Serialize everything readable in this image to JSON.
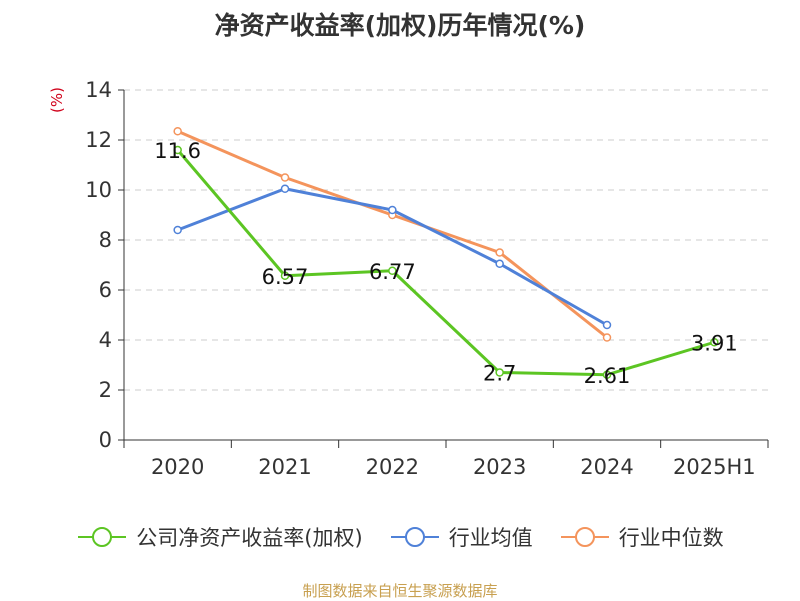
{
  "chart_data": {
    "type": "line",
    "title": "净资产收益率(加权)历年情况(%)",
    "ylabel": "(%)",
    "categories": [
      "2020",
      "2021",
      "2022",
      "2023",
      "2024",
      "2025H1"
    ],
    "ylim": [
      0,
      14
    ],
    "yticks": [
      0,
      2,
      4,
      6,
      8,
      10,
      12,
      14
    ],
    "grid": true,
    "legend_position": "bottom",
    "series": [
      {
        "name": "公司净资产收益率(加权)",
        "color": "#5cc523",
        "values": [
          11.6,
          6.57,
          6.77,
          2.7,
          2.61,
          3.91
        ],
        "labels": [
          "11.6",
          "6.57",
          "6.77",
          "2.7",
          "2.61",
          "3.91"
        ]
      },
      {
        "name": "行业均值",
        "color": "#4f81d8",
        "values": [
          8.4,
          10.05,
          9.2,
          7.05,
          4.6,
          null
        ]
      },
      {
        "name": "行业中位数",
        "color": "#f4945c",
        "values": [
          12.35,
          10.5,
          9.0,
          7.5,
          4.1,
          null
        ]
      }
    ]
  },
  "source": "制图数据来自恒生聚源数据库"
}
